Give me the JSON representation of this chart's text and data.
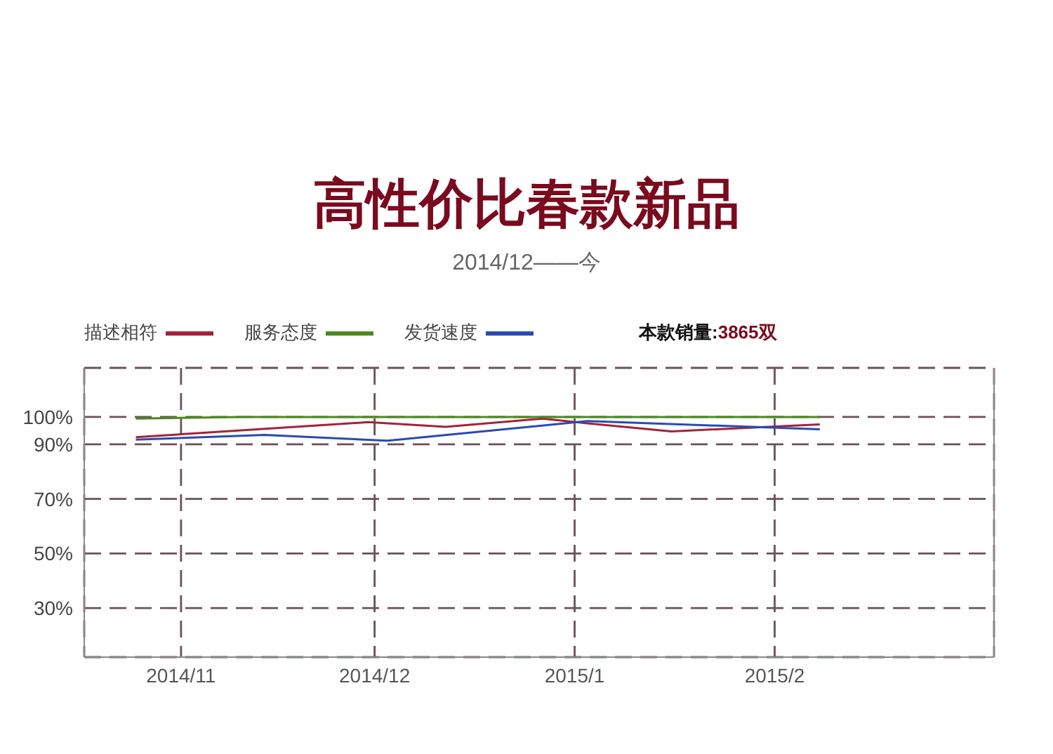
{
  "chart_data": {
    "type": "line",
    "title": "高性价比春款新品",
    "subtitle": "2014/12——今",
    "annotations": [
      "本款销量:3865双"
    ],
    "xlim": [
      "2014-10-17",
      "2015-03-07"
    ],
    "xticks": [
      {
        "value": "2014-11-01",
        "label": "2014/11"
      },
      {
        "value": "2014-12-01",
        "label": "2014/12"
      },
      {
        "value": "2015-01-01",
        "label": "2015/1"
      },
      {
        "value": "2015-02-01",
        "label": "2015/2"
      }
    ],
    "ylim": [
      12,
      118
    ],
    "yticks": [
      {
        "value": 100,
        "label": "100%"
      },
      {
        "value": 90,
        "label": "90%"
      },
      {
        "value": 70,
        "label": "70%"
      },
      {
        "value": 50,
        "label": "50%"
      },
      {
        "value": 30,
        "label": "30%"
      }
    ],
    "grid": true,
    "legend": "top left",
    "marker": "none",
    "line_style": "solid",
    "series": [
      {
        "name": "描述相符",
        "color": "#a3243a",
        "x": [
          "2014-10-25",
          "2014-11-30",
          "2014-12-12",
          "2014-12-27",
          "2015-01-03",
          "2015-01-16",
          "2015-02-08"
        ],
        "values": [
          92.6,
          98.1,
          96.4,
          99.4,
          97.7,
          94.7,
          97.3
        ]
      },
      {
        "name": "服务态度",
        "color": "#4a8a1e",
        "x": [
          "2014-10-25",
          "2014-11-10",
          "2015-02-08"
        ],
        "values": [
          99.4,
          100,
          100
        ]
      },
      {
        "name": "发货速度",
        "color": "#2a4bb5",
        "x": [
          "2014-10-25",
          "2014-11-14",
          "2014-12-03",
          "2015-01-03",
          "2015-02-08"
        ],
        "values": [
          91.7,
          93.4,
          91.3,
          98.5,
          95.5
        ]
      }
    ]
  }
}
